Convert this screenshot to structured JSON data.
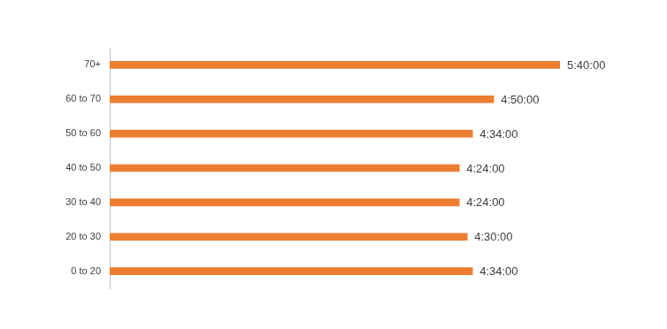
{
  "chart_data": {
    "type": "bar",
    "orientation": "horizontal",
    "categories": [
      "70+",
      "60 to 70",
      "50 to 60",
      "40 to 50",
      "30 to 40",
      "20 to 30",
      "0 to 20"
    ],
    "values": [
      20400,
      17400,
      16440,
      15840,
      15840,
      16200,
      16440
    ],
    "value_labels": [
      "5:40:00",
      "4:50:00",
      "4:34:00",
      "4:24:00",
      "4:24:00",
      "4:30:00",
      "4:34:00"
    ],
    "color": "#ed7d31",
    "xlim": [
      0,
      20400
    ],
    "grid": false,
    "data_labels": true,
    "tick_labels": "y"
  }
}
